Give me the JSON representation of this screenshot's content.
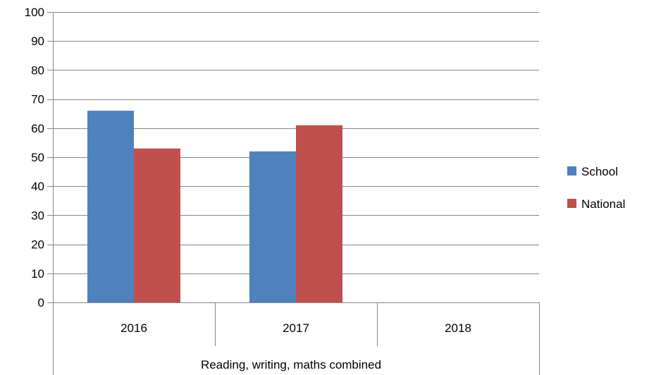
{
  "chart_data": {
    "type": "bar",
    "categories": [
      "2016",
      "2017",
      "2018"
    ],
    "group_label": "Reading, writing, maths combined",
    "series": [
      {
        "name": "School",
        "values": [
          66,
          52,
          null
        ],
        "color": "#4F81BD"
      },
      {
        "name": "National",
        "values": [
          53,
          61,
          null
        ],
        "color": "#C0504D"
      }
    ],
    "ylim": [
      0,
      100
    ],
    "yticks": [
      "0",
      "10",
      "20",
      "30",
      "40",
      "50",
      "60",
      "70",
      "80",
      "90",
      "100"
    ],
    "grid": true,
    "legend_position": "right",
    "title": "",
    "xlabel": "",
    "ylabel": ""
  }
}
